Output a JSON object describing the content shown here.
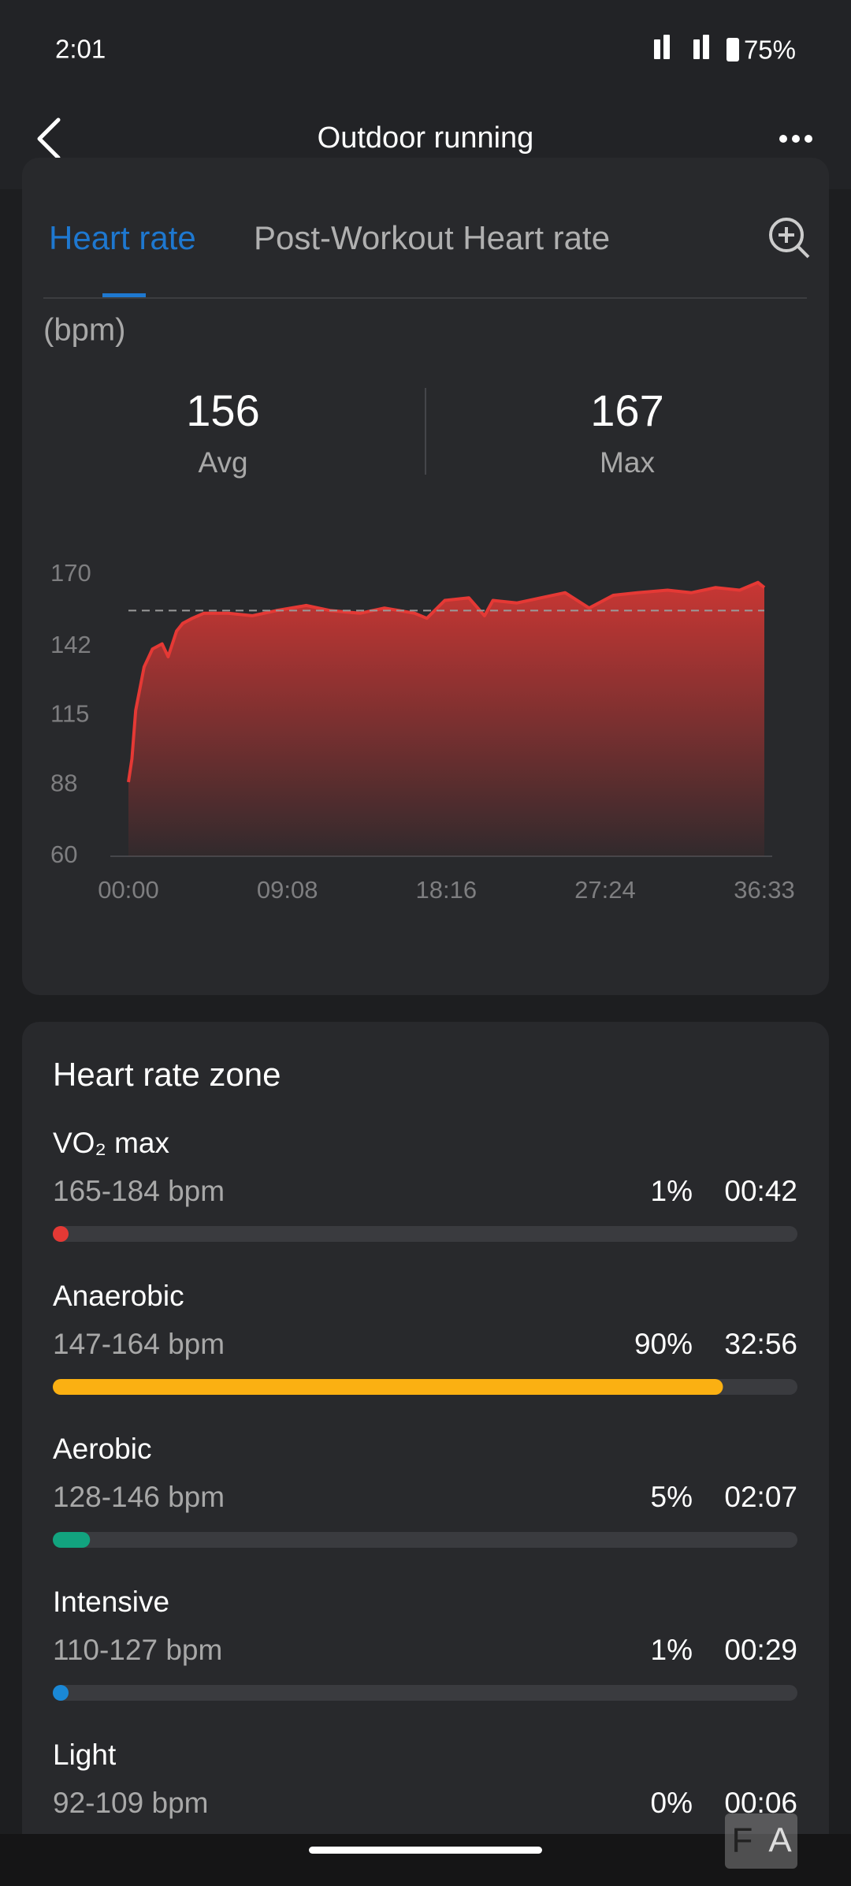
{
  "status_bar": {
    "time": "2:01",
    "battery": "75%"
  },
  "header": {
    "title": "Outdoor running"
  },
  "tabs": [
    "Heart rate",
    "Post-Workout Heart rate"
  ],
  "unit": "(bpm)",
  "stats": {
    "avg": {
      "value": 156,
      "label": "Avg"
    },
    "max": {
      "value": 167,
      "label": "Max"
    }
  },
  "chart_data": {
    "type": "area",
    "color": "#e53935",
    "x": [
      0,
      12,
      25,
      54,
      83,
      116,
      137,
      166,
      187,
      220,
      261,
      344,
      427,
      510,
      614,
      697,
      800,
      883,
      987,
      1029,
      1091,
      1174,
      1228,
      1257,
      1340,
      1423,
      1506,
      1589,
      1672,
      1755,
      1859,
      1942,
      2025,
      2108,
      2171,
      2193
    ],
    "values": [
      89,
      98,
      117,
      134,
      141,
      143,
      138,
      148,
      151,
      153,
      155,
      155,
      154,
      156,
      158,
      156,
      155,
      157,
      155,
      153,
      160,
      161,
      154,
      160,
      159,
      161,
      163,
      157,
      162,
      163,
      164,
      163,
      165,
      164,
      167,
      165
    ],
    "xlim": [
      0,
      2193
    ],
    "ylim": [
      60,
      170
    ],
    "xticks": [
      {
        "value": 0,
        "label": "00:00"
      },
      {
        "value": 548,
        "label": "09:08"
      },
      {
        "value": 1096,
        "label": "18:16"
      },
      {
        "value": 1644,
        "label": "27:24"
      },
      {
        "value": 2193,
        "label": "36:33"
      }
    ],
    "yticks": [
      60,
      88,
      115,
      142,
      170
    ]
  },
  "zones": {
    "title": "Heart rate zone",
    "items": [
      {
        "name": "VO₂ max",
        "range": "165-184 bpm",
        "value": 1,
        "value_label": "1%",
        "time": "00:42",
        "color": "#e53935"
      },
      {
        "name": "Anaerobic",
        "range": "147-164 bpm",
        "value": 90,
        "value_label": "90%",
        "time": "32:56",
        "color": "#fbb012"
      },
      {
        "name": "Aerobic",
        "range": "128-146 bpm",
        "value": 5,
        "value_label": "5%",
        "time": "02:07",
        "color": "#12a37f"
      },
      {
        "name": "Intensive",
        "range": "110-127 bpm",
        "value": 1,
        "value_label": "1%",
        "time": "00:29",
        "color": "#1a88d6"
      },
      {
        "name": "Light",
        "range": "92-109 bpm",
        "value": 0,
        "value_label": "0%",
        "time": "00:06"
      }
    ]
  },
  "watermark": [
    "F",
    "A"
  ]
}
